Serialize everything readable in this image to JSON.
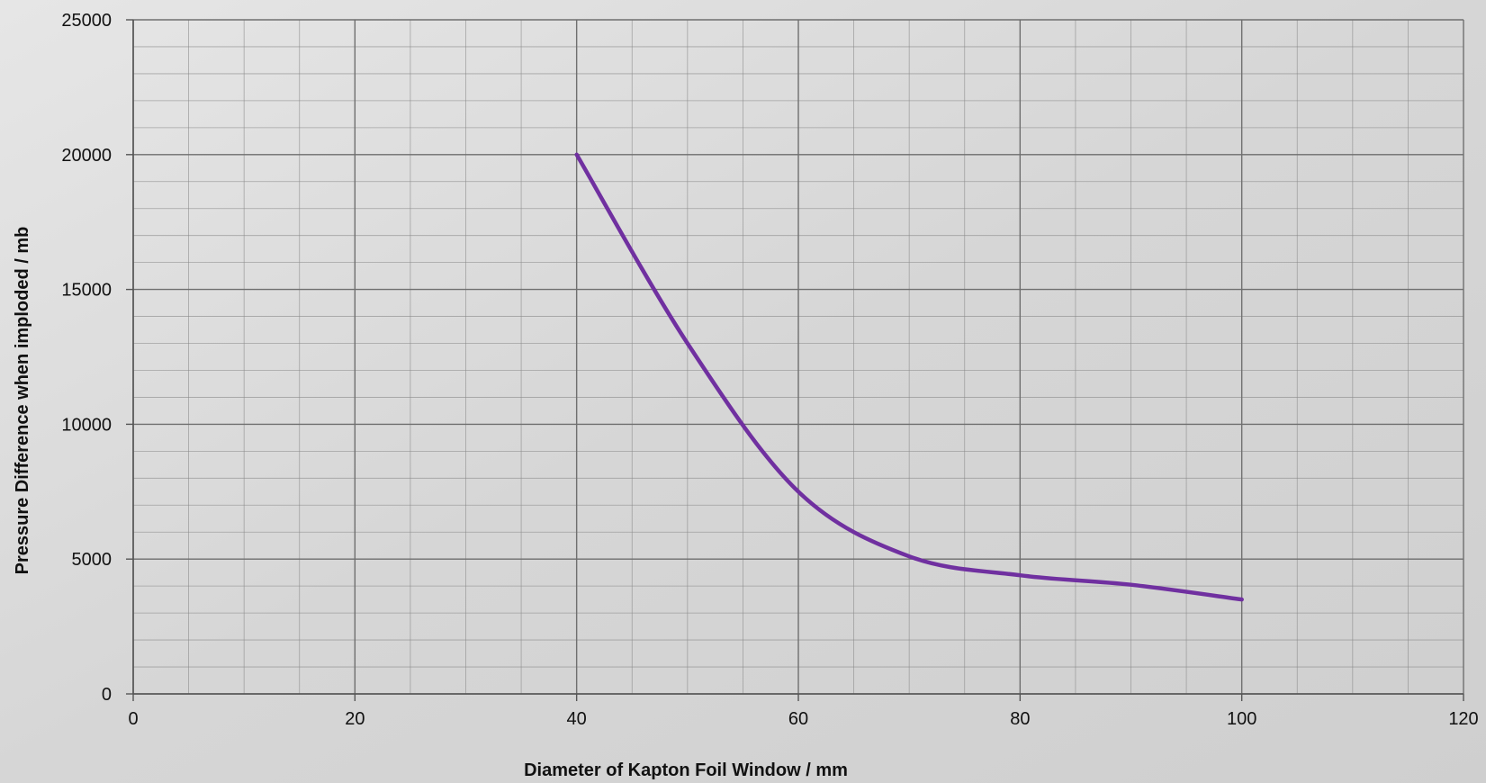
{
  "chart_data": {
    "type": "line",
    "title": "",
    "xlabel": "Diameter of Kapton Foil Window / mm",
    "ylabel": "Pressure Difference when imploded / mb",
    "xlim": [
      0,
      120
    ],
    "ylim": [
      0,
      25000
    ],
    "x_ticks": [
      0,
      20,
      40,
      60,
      80,
      100,
      120
    ],
    "y_ticks": [
      0,
      5000,
      10000,
      15000,
      20000,
      25000
    ],
    "x_tick_labels": [
      "0",
      "20",
      "40",
      "60",
      "80",
      "100",
      "120"
    ],
    "y_tick_labels": [
      "0",
      "5000",
      "10000",
      "15000",
      "20000",
      "25000"
    ],
    "grid": true,
    "minor_grid": true,
    "legend": "none",
    "series": [
      {
        "color": "#7030a0",
        "smooth": true,
        "x": [
          40,
          50,
          60,
          70,
          80,
          90,
          100
        ],
        "y": [
          20000,
          13000,
          7500,
          5100,
          4400,
          4050,
          3500
        ]
      }
    ]
  }
}
